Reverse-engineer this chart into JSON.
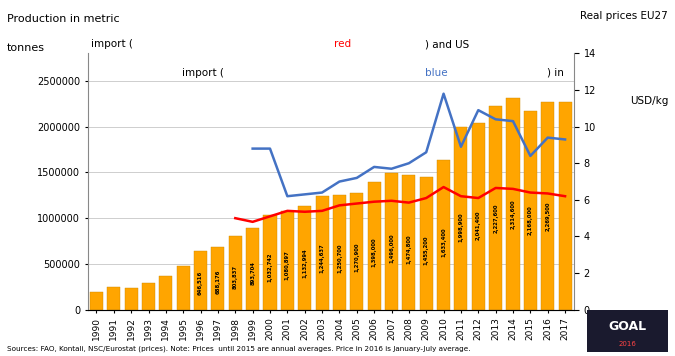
{
  "years": [
    1990,
    1991,
    1992,
    1993,
    1994,
    1995,
    1996,
    1997,
    1998,
    1999,
    2000,
    2001,
    2002,
    2003,
    2004,
    2005,
    2006,
    2007,
    2008,
    2009,
    2010,
    2011,
    2012,
    2013,
    2014,
    2015,
    2016,
    2017
  ],
  "production": [
    193000,
    245000,
    237000,
    295000,
    368000,
    478000,
    646516,
    688176,
    803837,
    893704,
    1032742,
    1080897,
    1132994,
    1244637,
    1250700,
    1270900,
    1398000,
    1496000,
    1474800,
    1455200,
    1633400,
    1998900,
    2041400,
    2227600,
    2314600,
    2168000,
    2269500,
    2270000
  ],
  "bar_labels": [
    "",
    "",
    "",
    "",
    "",
    "",
    "646,516",
    "688,176",
    "803,837",
    "893,704",
    "1,032,742",
    "1,080,897",
    "1,132,994",
    "1,244,637",
    "1,250,700",
    "1,270,900",
    "1,398,000",
    "1,496,000",
    "1,474,800",
    "1,455,200",
    "1,633,400",
    "1,998,900",
    "2,041,400",
    "2,227,600",
    "2,314,600",
    "2,168,000",
    "2,269,500",
    ""
  ],
  "eu27_red": [
    null,
    null,
    null,
    null,
    null,
    null,
    null,
    null,
    5.0,
    4.8,
    5.1,
    5.4,
    5.35,
    5.4,
    5.7,
    5.8,
    5.9,
    5.95,
    5.85,
    6.1,
    6.7,
    6.2,
    6.1,
    6.65,
    6.6,
    6.4,
    6.35,
    6.2
  ],
  "us_blue": [
    null,
    null,
    null,
    null,
    null,
    null,
    null,
    null,
    null,
    8.8,
    8.8,
    6.2,
    6.3,
    6.4,
    7.0,
    7.2,
    7.8,
    7.7,
    8.0,
    8.6,
    11.8,
    8.9,
    10.9,
    10.4,
    10.3,
    8.4,
    9.4,
    9.3
  ],
  "bar_color": "#FFA500",
  "bar_edge_color": "#CC8800",
  "red_color": "#FF0000",
  "blue_color": "#4472C4",
  "ylim_left": [
    0,
    2800000
  ],
  "ylim_right": [
    0,
    14
  ],
  "yticks_left": [
    0,
    500000,
    1000000,
    1500000,
    2000000,
    2500000
  ],
  "yticks_right": [
    0,
    2,
    4,
    6,
    8,
    10,
    12,
    14
  ],
  "source_text": "Sources: FAO, Kontali, NSC/Eurostat (prices). Note: Prices  until 2015 are annual averages. Price in 2016 is January-July average.",
  "bg_color": "#FFFFFF",
  "grid_color": "#BBBBBB",
  "ylabel_left_line1": "Production in metric",
  "ylabel_left_line2": "tonnes",
  "ylabel_right_line1": "Real prices EU27",
  "ylabel_right_line2": "import (",
  "ylabel_right_line2_red": "red",
  "ylabel_right_line2_end": ") and US",
  "ylabel_right_line3": "import (",
  "ylabel_right_line3_blue": "blue",
  "ylabel_right_line3_end": ") in",
  "ylabel_right_line4": "USD/kg"
}
